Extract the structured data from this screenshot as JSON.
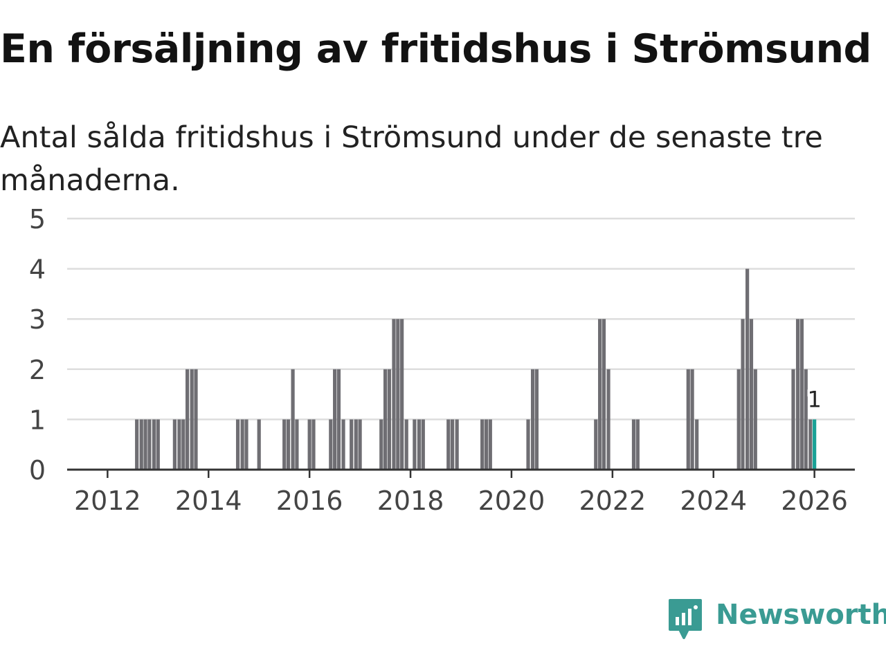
{
  "title": "En försäljning av fritidshus i Strömsund",
  "subtitle": "Antal sålda fritidshus i Strömsund under de senaste tre månaderna.",
  "brand": {
    "name": "Newsworthy",
    "color": "#3a9b93",
    "icon": "newsworthy-logo-icon"
  },
  "colors": {
    "bar": "#6f6e73",
    "highlight": "#1aa196",
    "grid": "#dddddd",
    "axis": "#333333"
  },
  "chart_data": {
    "type": "bar",
    "title": "En försäljning av fritidshus i Strömsund",
    "xlabel": "",
    "ylabel": "",
    "ylim": [
      0,
      5
    ],
    "yticks": [
      0,
      1,
      2,
      3,
      4,
      5
    ],
    "xlim": [
      2011.2,
      2026.8
    ],
    "xticks": [
      2012,
      2014,
      2016,
      2018,
      2020,
      2022,
      2024,
      2026
    ],
    "grid": true,
    "series": [
      {
        "name": "Antal sålda fritidshus",
        "points": [
          {
            "x": 2012.58,
            "y": 1
          },
          {
            "x": 2012.67,
            "y": 1
          },
          {
            "x": 2012.75,
            "y": 1
          },
          {
            "x": 2012.83,
            "y": 1
          },
          {
            "x": 2012.92,
            "y": 1
          },
          {
            "x": 2013.0,
            "y": 1
          },
          {
            "x": 2013.33,
            "y": 1
          },
          {
            "x": 2013.42,
            "y": 1
          },
          {
            "x": 2013.5,
            "y": 1
          },
          {
            "x": 2013.58,
            "y": 2
          },
          {
            "x": 2013.67,
            "y": 2
          },
          {
            "x": 2013.75,
            "y": 2
          },
          {
            "x": 2014.58,
            "y": 1
          },
          {
            "x": 2014.67,
            "y": 1
          },
          {
            "x": 2014.75,
            "y": 1
          },
          {
            "x": 2015.0,
            "y": 1
          },
          {
            "x": 2015.5,
            "y": 1
          },
          {
            "x": 2015.58,
            "y": 1
          },
          {
            "x": 2015.67,
            "y": 2
          },
          {
            "x": 2015.75,
            "y": 1
          },
          {
            "x": 2016.0,
            "y": 1
          },
          {
            "x": 2016.08,
            "y": 1
          },
          {
            "x": 2016.42,
            "y": 1
          },
          {
            "x": 2016.5,
            "y": 2
          },
          {
            "x": 2016.58,
            "y": 2
          },
          {
            "x": 2016.67,
            "y": 1
          },
          {
            "x": 2016.83,
            "y": 1
          },
          {
            "x": 2016.92,
            "y": 1
          },
          {
            "x": 2017.0,
            "y": 1
          },
          {
            "x": 2017.42,
            "y": 1
          },
          {
            "x": 2017.5,
            "y": 2
          },
          {
            "x": 2017.58,
            "y": 2
          },
          {
            "x": 2017.67,
            "y": 3
          },
          {
            "x": 2017.75,
            "y": 3
          },
          {
            "x": 2017.83,
            "y": 3
          },
          {
            "x": 2017.92,
            "y": 1
          },
          {
            "x": 2018.08,
            "y": 1
          },
          {
            "x": 2018.17,
            "y": 1
          },
          {
            "x": 2018.25,
            "y": 1
          },
          {
            "x": 2018.75,
            "y": 1
          },
          {
            "x": 2018.83,
            "y": 1
          },
          {
            "x": 2018.92,
            "y": 1
          },
          {
            "x": 2019.42,
            "y": 1
          },
          {
            "x": 2019.5,
            "y": 1
          },
          {
            "x": 2019.58,
            "y": 1
          },
          {
            "x": 2020.33,
            "y": 1
          },
          {
            "x": 2020.42,
            "y": 2
          },
          {
            "x": 2020.5,
            "y": 2
          },
          {
            "x": 2021.67,
            "y": 1
          },
          {
            "x": 2021.75,
            "y": 3
          },
          {
            "x": 2021.83,
            "y": 3
          },
          {
            "x": 2021.92,
            "y": 2
          },
          {
            "x": 2022.42,
            "y": 1
          },
          {
            "x": 2022.5,
            "y": 1
          },
          {
            "x": 2023.5,
            "y": 2
          },
          {
            "x": 2023.58,
            "y": 2
          },
          {
            "x": 2023.67,
            "y": 1
          },
          {
            "x": 2024.5,
            "y": 2
          },
          {
            "x": 2024.58,
            "y": 3
          },
          {
            "x": 2024.67,
            "y": 4
          },
          {
            "x": 2024.75,
            "y": 3
          },
          {
            "x": 2024.83,
            "y": 2
          },
          {
            "x": 2025.58,
            "y": 2
          },
          {
            "x": 2025.67,
            "y": 3
          },
          {
            "x": 2025.75,
            "y": 3
          },
          {
            "x": 2025.83,
            "y": 2
          },
          {
            "x": 2025.92,
            "y": 1
          }
        ]
      }
    ],
    "highlight": {
      "x": 2026.0,
      "y": 1,
      "label": "1"
    }
  }
}
